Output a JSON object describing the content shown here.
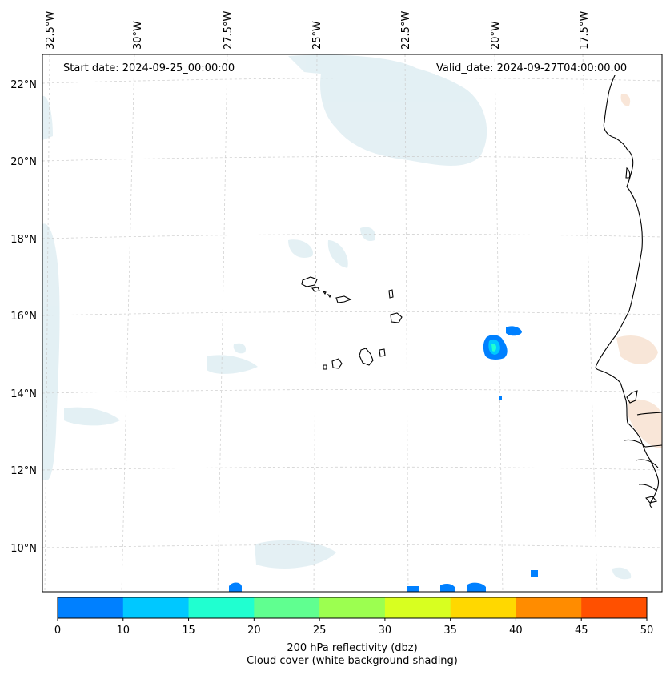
{
  "map": {
    "start_date": "Start date: 2024-09-25_00:00:00",
    "valid_date": "Valid_date: 2024-09-27T04:00:00.00",
    "longitude_labels": [
      "32.5°W",
      "30°W",
      "27.5°W",
      "25°W",
      "22.5°W",
      "20°W",
      "17.5°W"
    ],
    "latitude_labels": [
      "22°N",
      "20°N",
      "18°N",
      "16°N",
      "14°N",
      "12°N",
      "10°N"
    ],
    "features": [
      "Cabo Verde islands",
      "West African coastline"
    ],
    "reflectivity_colors": [
      "#0080ff",
      "#00c8ff",
      "#20ffd0",
      "#60ff90",
      "#9cff50",
      "#d8ff20",
      "#ffd800",
      "#ff8c00",
      "#ff5000"
    ]
  },
  "colorbar": {
    "ticks": [
      "0",
      "10",
      "15",
      "20",
      "25",
      "30",
      "35",
      "40",
      "45",
      "50"
    ],
    "label_line1": "200 hPa reflectivity (dbz)",
    "label_line2": "Cloud cover (white background shading)"
  }
}
